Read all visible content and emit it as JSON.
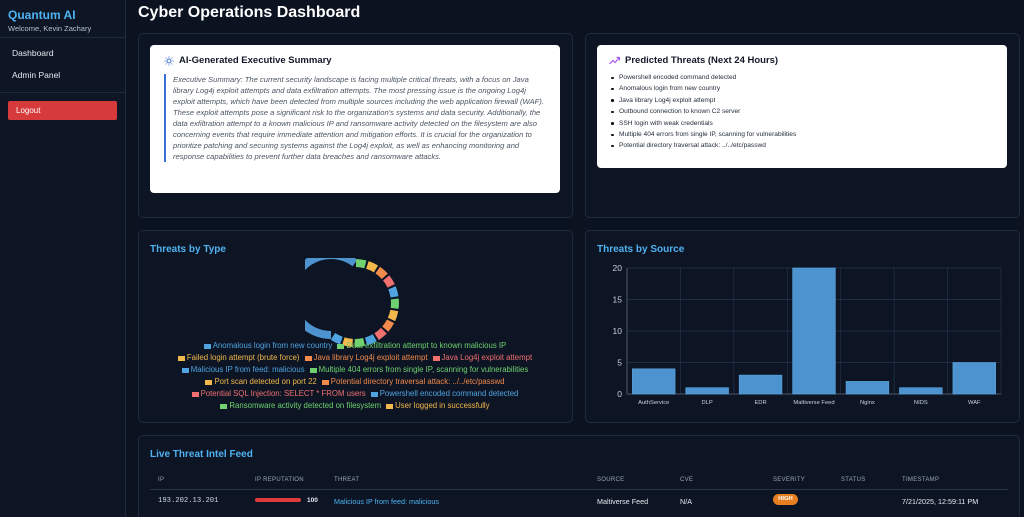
{
  "brand": {
    "title": "Quantum AI",
    "welcome": "Welcome, Kevin Zachary"
  },
  "nav": {
    "items": [
      "Dashboard",
      "Admin Panel"
    ],
    "logout": "Logout"
  },
  "page_title": "Cyber Operations Dashboard",
  "summary": {
    "title": "AI-Generated Executive Summary",
    "text": "Executive Summary: The current security landscape is facing multiple critical threats, with a focus on Java library Log4j exploit attempts and data exfiltration attempts. The most pressing issue is the ongoing Log4j exploit attempts, which have been detected from multiple sources including the web application firewall (WAF). These exploit attempts pose a significant risk to the organization's systems and data security. Additionally, the data exfiltration attempt to a known malicious IP and ransomware activity detected on the filesystem are also concerning events that require immediate attention and mitigation efforts. It is crucial for the organization to prioritize patching and securing systems against the Log4j exploit, as well as enhancing monitoring and response capabilities to prevent further data breaches and ransomware attacks."
  },
  "predicted": {
    "title": "Predicted Threats (Next 24 Hours)",
    "items": [
      "Powershell encoded command detected",
      "Anomalous login from new country",
      "Java library Log4j exploit attempt",
      "Outbound connection to known C2 server",
      "SSH login with weak credentials",
      "Multiple 404 errors from single IP, scanning for vulnerabilities",
      "Potential directory traversal attack: ../../etc/passwd"
    ]
  },
  "threats_by_type": {
    "title": "Threats by Type",
    "legend": [
      {
        "label": "Anomalous login from new country",
        "color": "#4fa3e0"
      },
      {
        "label": "Data exfiltration attempt to known malicious IP",
        "color": "#6fd16f"
      },
      {
        "label": "Failed login attempt (brute force)",
        "color": "#f2b84b"
      },
      {
        "label": "Java library Log4j exploit attempt",
        "color": "#f28a4b"
      },
      {
        "label": "Java Log4j exploit attempt",
        "color": "#f07070"
      },
      {
        "label": "Malicious IP from feed: malicious",
        "color": "#4fa3e0"
      },
      {
        "label": "Multiple 404 errors from single IP, scanning for vulnerabilities",
        "color": "#6fd16f"
      },
      {
        "label": "Port scan detected on port 22",
        "color": "#f2b84b"
      },
      {
        "label": "Potential directory traversal attack: ../../etc/passwd",
        "color": "#f28a4b"
      },
      {
        "label": "Potential SQL Injection: SELECT * FROM users",
        "color": "#f07070"
      },
      {
        "label": "Powershell encoded command detected",
        "color": "#4fa3e0"
      },
      {
        "label": "Ransomware activity detected on filesystem",
        "color": "#6fd16f"
      },
      {
        "label": "User logged in successfully",
        "color": "#f2b84b"
      }
    ]
  },
  "threats_by_source": {
    "title": "Threats by Source"
  },
  "chart_data": [
    {
      "type": "bar",
      "title": "Threats by Source",
      "categories": [
        "AuthService",
        "DLP",
        "EDR",
        "Maltiverse Feed",
        "Nginx",
        "NIDS",
        "WAF"
      ],
      "values": [
        4,
        1,
        3,
        20,
        2,
        1,
        5
      ],
      "ylim": [
        0,
        20
      ],
      "yticks": [
        0,
        5,
        10,
        15,
        20
      ],
      "grid": true,
      "bar_color": "#4c93cf"
    }
  ],
  "feed": {
    "title": "Live Threat Intel Feed",
    "headers": [
      "IP",
      "IP REPUTATION",
      "THREAT",
      "SOURCE",
      "CVE",
      "SEVERITY",
      "STATUS",
      "TIMESTAMP"
    ],
    "rows": [
      {
        "ip": "193.202.13.201",
        "reputation": "100",
        "reputation_fraction": 1.0,
        "threat": "Malicious IP from feed: malicious",
        "source": "Maltiverse Feed",
        "cve": "N/A",
        "severity": "HIGH",
        "status": "",
        "timestamp": "7/21/2025, 12:59:11 PM"
      }
    ]
  }
}
